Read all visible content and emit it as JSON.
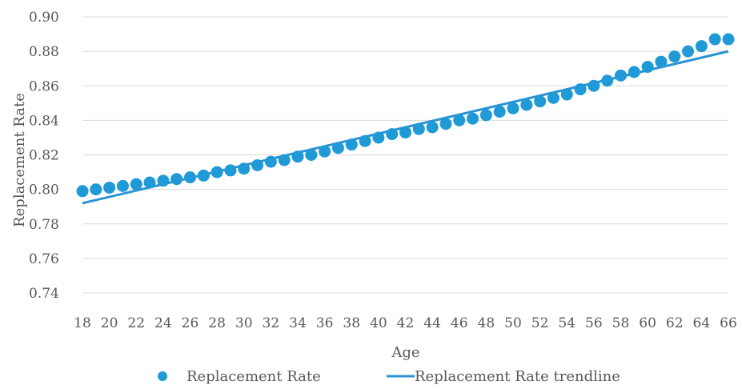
{
  "chart_data": {
    "type": "scatter",
    "title": "",
    "xlabel": "Age",
    "ylabel": "Replacement Rate",
    "ylim": [
      0.74,
      0.9
    ],
    "y_ticks": [
      "0.74",
      "0.76",
      "0.78",
      "0.80",
      "0.82",
      "0.84",
      "0.86",
      "0.88",
      "0.90"
    ],
    "x_ticks": [
      "18",
      "20",
      "22",
      "24",
      "26",
      "28",
      "30",
      "32",
      "34",
      "36",
      "38",
      "40",
      "42",
      "44",
      "46",
      "48",
      "50",
      "52",
      "54",
      "56",
      "58",
      "60",
      "62",
      "64",
      "66"
    ],
    "grid": true,
    "legend_position": "bottom",
    "colors": {
      "points": "#1f9ad6",
      "trendline": "#2a93d1",
      "grid": "#d9d9d9",
      "text": "#595959"
    },
    "series": [
      {
        "name": "Replacement Rate",
        "type": "scatter",
        "x": [
          18,
          19,
          20,
          21,
          22,
          23,
          24,
          25,
          26,
          27,
          28,
          29,
          30,
          31,
          32,
          33,
          34,
          35,
          36,
          37,
          38,
          39,
          40,
          41,
          42,
          43,
          44,
          45,
          46,
          47,
          48,
          49,
          50,
          51,
          52,
          53,
          54,
          55,
          56,
          57,
          58,
          59,
          60,
          61,
          62,
          63,
          64,
          65,
          66
        ],
        "y": [
          0.799,
          0.8,
          0.801,
          0.802,
          0.803,
          0.804,
          0.805,
          0.806,
          0.807,
          0.808,
          0.81,
          0.811,
          0.812,
          0.814,
          0.816,
          0.817,
          0.819,
          0.82,
          0.822,
          0.824,
          0.826,
          0.828,
          0.83,
          0.832,
          0.833,
          0.835,
          0.836,
          0.838,
          0.84,
          0.841,
          0.843,
          0.845,
          0.847,
          0.849,
          0.851,
          0.853,
          0.855,
          0.858,
          0.86,
          0.863,
          0.866,
          0.868,
          0.871,
          0.874,
          0.877,
          0.88,
          0.883,
          0.887,
          0.887
        ]
      },
      {
        "name": "Replacement Rate trendline",
        "type": "line",
        "x": [
          18,
          66
        ],
        "y": [
          0.792,
          0.88
        ]
      }
    ]
  }
}
